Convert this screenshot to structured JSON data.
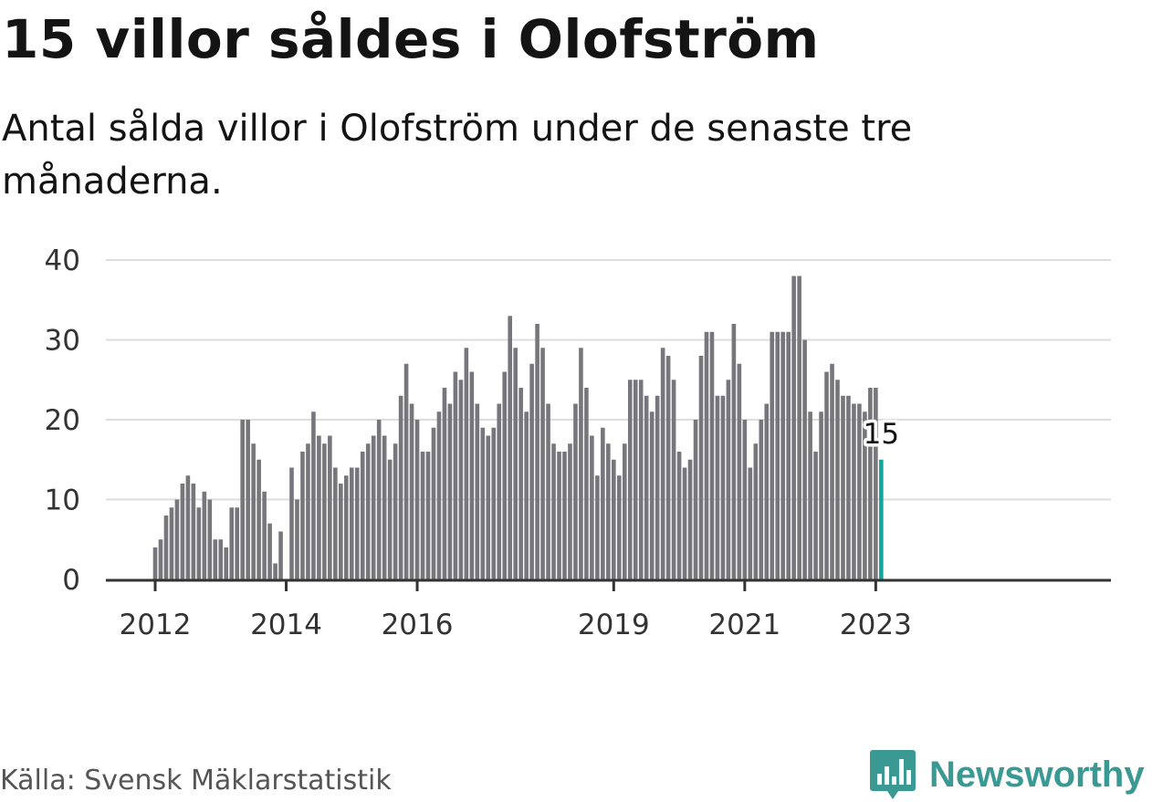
{
  "title": "15 villor såldes i Olofström",
  "subtitle": "Antal sålda villor i Olofström under de senaste tre månaderna.",
  "source": "Källa: Svensk Mäklarstatistik",
  "brand": {
    "name": "Newsworthy",
    "color": "#3a9a93"
  },
  "colors": {
    "bar": "#77767c",
    "highlight": "#12a69a",
    "grid": "#dddddd",
    "axis": "#333333"
  },
  "chart_data": {
    "type": "bar",
    "ylim": [
      0,
      40
    ],
    "yticks": [
      0,
      10,
      20,
      30,
      40
    ],
    "xticks": [
      "2012",
      "2014",
      "2016",
      "2019",
      "2021",
      "2023"
    ],
    "grid": true,
    "legend": "none",
    "highlight_last": true,
    "last_value_label": "15",
    "start": "2012-01",
    "end": "2023-02",
    "values": [
      4,
      5,
      8,
      9,
      10,
      12,
      13,
      12,
      9,
      11,
      10,
      5,
      5,
      4,
      9,
      9,
      20,
      20,
      17,
      15,
      11,
      7,
      2,
      6,
      0,
      14,
      10,
      16,
      17,
      21,
      18,
      17,
      18,
      14,
      12,
      13,
      14,
      14,
      16,
      17,
      18,
      20,
      18,
      15,
      17,
      23,
      27,
      22,
      20,
      16,
      16,
      19,
      21,
      24,
      22,
      26,
      25,
      29,
      26,
      22,
      19,
      18,
      19,
      22,
      26,
      33,
      29,
      24,
      21,
      27,
      32,
      29,
      22,
      17,
      16,
      16,
      17,
      22,
      29,
      24,
      18,
      13,
      19,
      17,
      15,
      13,
      17,
      25,
      25,
      25,
      23,
      21,
      23,
      29,
      28,
      25,
      16,
      14,
      15,
      20,
      28,
      31,
      31,
      23,
      23,
      25,
      32,
      27,
      20,
      14,
      17,
      20,
      22,
      31,
      31,
      31,
      31,
      38,
      38,
      30,
      21,
      16,
      21,
      26,
      27,
      25,
      23,
      23,
      22,
      22,
      21,
      24,
      24,
      15
    ]
  }
}
